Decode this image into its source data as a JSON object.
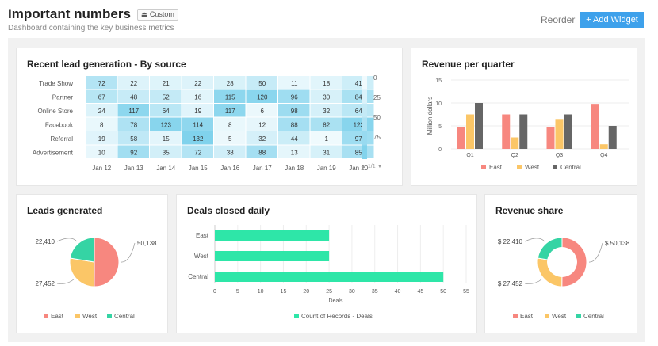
{
  "header": {
    "title": "Important numbers",
    "badge": "Custom",
    "subtitle": "Dashboard containing the key business metrics",
    "reorder": "Reorder",
    "add_widget": "+ Add Widget",
    "accent": "#3ea1eb"
  },
  "colors": {
    "East": "#f7877f",
    "West": "#fbc667",
    "Central": "#666666",
    "Deals": "#2ee6a8",
    "Central_pie": "#35d4a4"
  },
  "heatmap": {
    "title": "Recent lead generation - By source",
    "type": "heatmap",
    "rows": [
      "Trade Show",
      "Partner",
      "Online Store",
      "Facebook",
      "Referral",
      "Advertisement"
    ],
    "columns": [
      "Jan 12",
      "Jan 13",
      "Jan 14",
      "Jan 15",
      "Jan 16",
      "Jan 17",
      "Jan 18",
      "Jan 19",
      "Jan 20"
    ],
    "values": [
      [
        72,
        22,
        21,
        22,
        28,
        50,
        11,
        18,
        41
      ],
      [
        67,
        48,
        52,
        16,
        115,
        120,
        96,
        30,
        84
      ],
      [
        24,
        117,
        64,
        19,
        117,
        6,
        98,
        32,
        64
      ],
      [
        8,
        78,
        123,
        114,
        8,
        12,
        88,
        82,
        123
      ],
      [
        19,
        58,
        15,
        132,
        5,
        32,
        44,
        1,
        97
      ],
      [
        10,
        92,
        35,
        72,
        38,
        88,
        13,
        31,
        85
      ]
    ],
    "legend_ticks": [
      "0",
      "25",
      "50",
      "75"
    ],
    "pager": "1/1"
  },
  "chart_data": [
    {
      "type": "bar",
      "title": "Revenue per quarter",
      "ylabel": "Million dollars",
      "categories": [
        "Q1",
        "Q2",
        "Q3",
        "Q4"
      ],
      "ylim": [
        0,
        15
      ],
      "yticks": [
        "0",
        "5",
        "10",
        "15"
      ],
      "legend": "bottom",
      "series": [
        {
          "name": "East",
          "values": [
            4.8,
            7.5,
            4.8,
            9.8
          ]
        },
        {
          "name": "West",
          "values": [
            7.5,
            2.5,
            6.5,
            1
          ]
        },
        {
          "name": "Central",
          "values": [
            10,
            7.5,
            7.5,
            5
          ]
        }
      ]
    },
    {
      "type": "pie",
      "title": "Leads generated",
      "labels": [
        "East",
        "West",
        "Central"
      ],
      "values": [
        50138,
        27452,
        22410
      ],
      "value_labels": [
        "50,138",
        "27,452",
        "22,410"
      ],
      "legend": "bottom"
    },
    {
      "type": "bar",
      "orientation": "horizontal",
      "title": "Deals closed daily",
      "xlabel": "Deals",
      "categories": [
        "East",
        "West",
        "Central"
      ],
      "values": [
        25,
        25,
        50
      ],
      "xlim": [
        0,
        55
      ],
      "xticks": [
        "0",
        "5",
        "10",
        "15",
        "20",
        "25",
        "30",
        "35",
        "40",
        "45",
        "50",
        "55"
      ],
      "series_name": "Count of Records - Deals",
      "legend": "bottom"
    },
    {
      "type": "pie",
      "donut": true,
      "title": "Revenue share",
      "labels": [
        "East",
        "West",
        "Central"
      ],
      "values": [
        50138,
        27452,
        22410
      ],
      "value_labels": [
        "$ 50,138",
        "$ 27,452",
        "$ 22,410"
      ],
      "legend": "bottom"
    }
  ]
}
